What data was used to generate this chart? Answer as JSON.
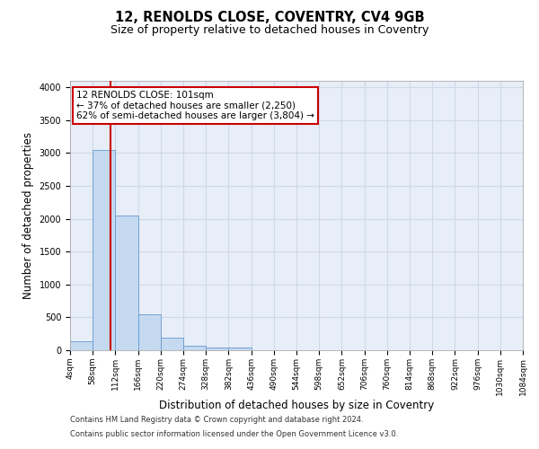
{
  "title": "12, RENOLDS CLOSE, COVENTRY, CV4 9GB",
  "subtitle": "Size of property relative to detached houses in Coventry",
  "xlabel": "Distribution of detached houses by size in Coventry",
  "ylabel": "Number of detached properties",
  "footer_line1": "Contains HM Land Registry data © Crown copyright and database right 2024.",
  "footer_line2": "Contains public sector information licensed under the Open Government Licence v3.0.",
  "bin_labels": [
    "4sqm",
    "58sqm",
    "112sqm",
    "166sqm",
    "220sqm",
    "274sqm",
    "328sqm",
    "382sqm",
    "436sqm",
    "490sqm",
    "544sqm",
    "598sqm",
    "652sqm",
    "706sqm",
    "760sqm",
    "814sqm",
    "868sqm",
    "922sqm",
    "976sqm",
    "1030sqm",
    "1084sqm"
  ],
  "bar_values": [
    130,
    3050,
    2050,
    550,
    185,
    70,
    45,
    40,
    0,
    0,
    0,
    0,
    0,
    0,
    0,
    0,
    0,
    0,
    0,
    0
  ],
  "bar_color": "#c5d9f1",
  "bar_edge_color": "#6699cc",
  "vline_x": 1.79,
  "vline_color": "#cc0000",
  "annotation_text": "12 RENOLDS CLOSE: 101sqm\n← 37% of detached houses are smaller (2,250)\n62% of semi-detached houses are larger (3,804) →",
  "annotation_box_color": "#ffffff",
  "annotation_border_color": "#cc0000",
  "ylim": [
    0,
    4100
  ],
  "yticks": [
    0,
    500,
    1000,
    1500,
    2000,
    2500,
    3000,
    3500,
    4000
  ],
  "grid_color": "#d0d8e8",
  "bg_color": "#e8eef8",
  "title_fontsize": 10.5,
  "subtitle_fontsize": 9,
  "axis_label_fontsize": 8.5,
  "tick_fontsize": 7,
  "annot_fontsize": 7.5
}
